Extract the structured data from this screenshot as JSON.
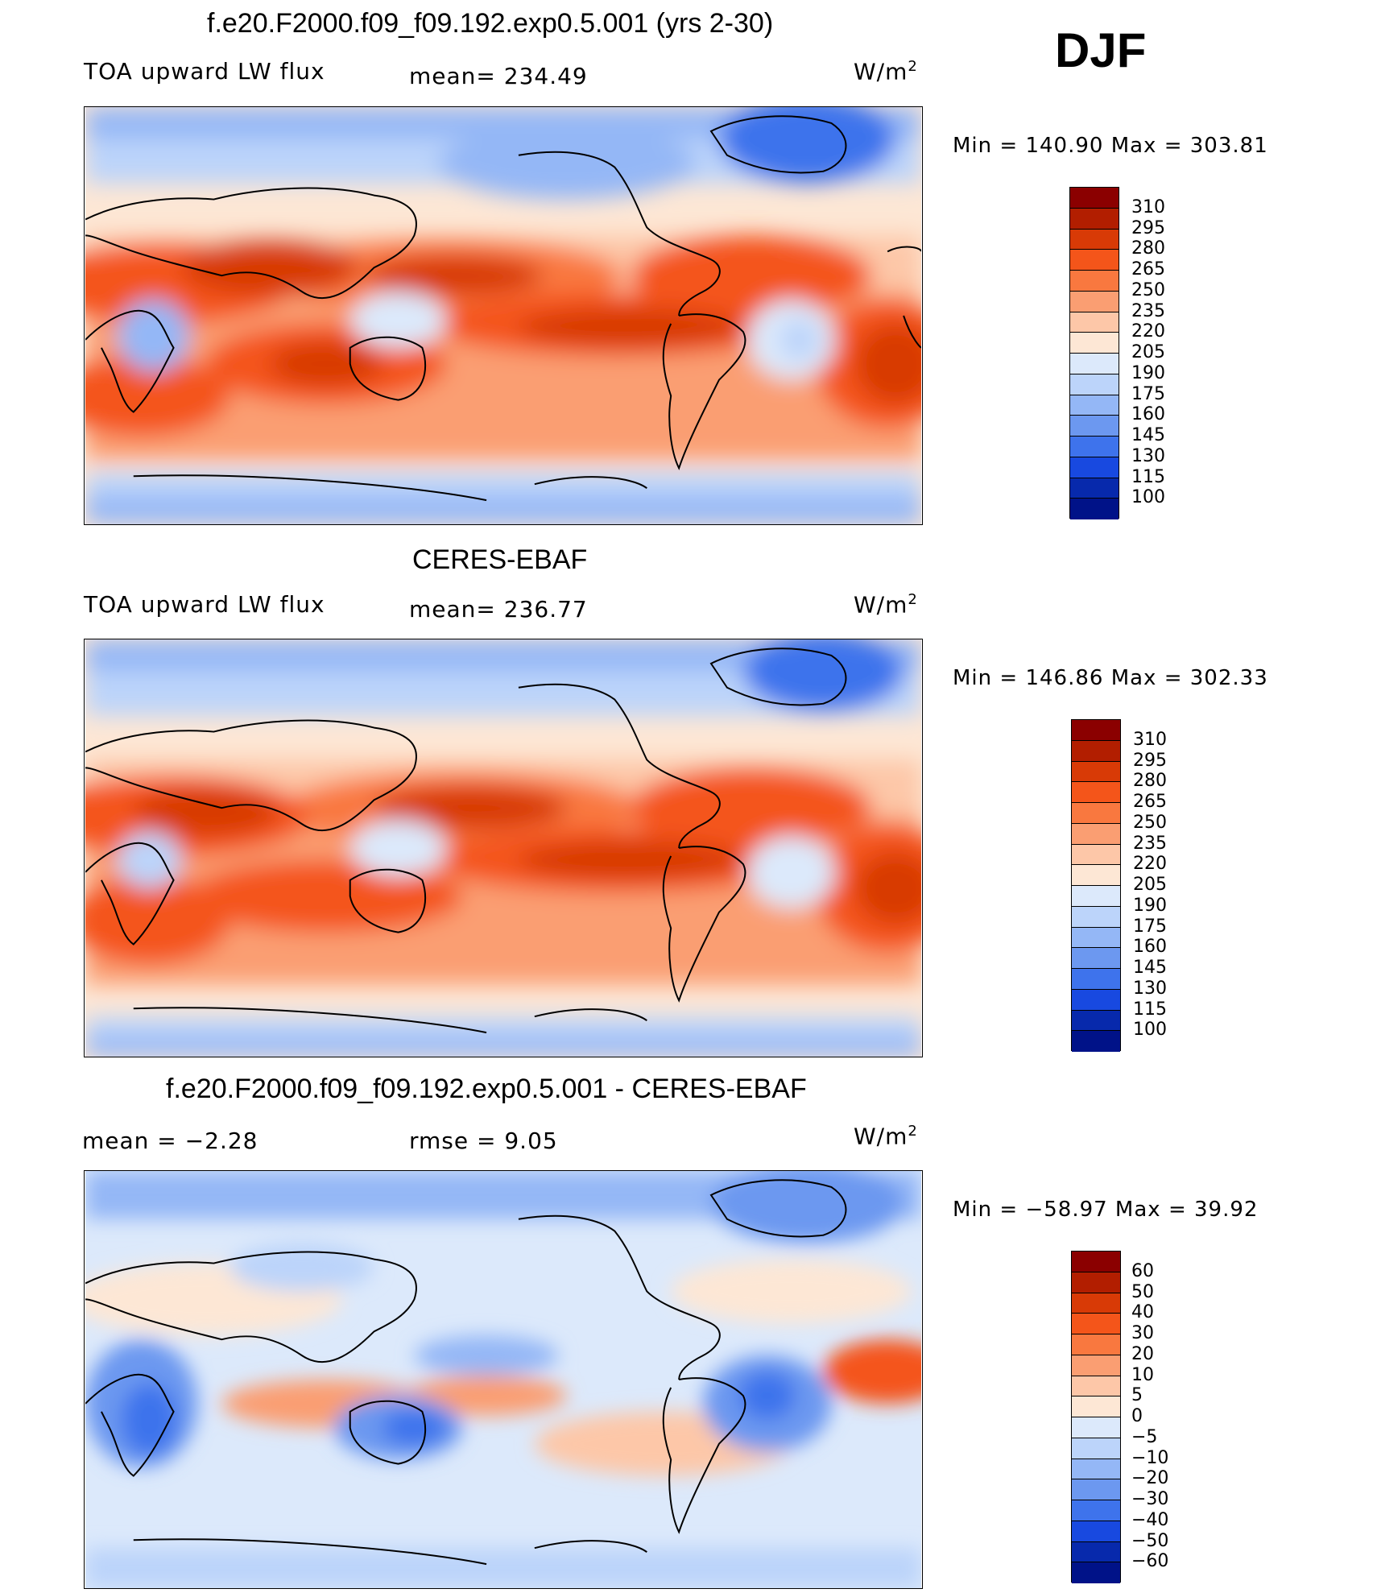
{
  "season": "DJF",
  "panels": [
    {
      "id": "model",
      "title": "f.e20.F2000.f09_f09.192.exp0.5.001 (yrs 2-30)",
      "left_text": "TOA upward LW flux",
      "mid_text": "mean= 234.49",
      "units_base": "W/m",
      "units_exp": "2",
      "minmax": "Min = 140.90 Max = 303.81",
      "levels": [
        "310",
        "295",
        "280",
        "265",
        "250",
        "235",
        "220",
        "205",
        "190",
        "175",
        "160",
        "145",
        "130",
        "115",
        "100"
      ],
      "palette": [
        "#8b0000",
        "#b21e00",
        "#d83a06",
        "#f4551a",
        "#f9783f",
        "#fa9e72",
        "#fdc7a8",
        "#fde7d5",
        "#dce9fb",
        "#bcd4fa",
        "#94b7f6",
        "#6c98f0",
        "#3e73ec",
        "#1849e0",
        "#0729ac",
        "#001288"
      ],
      "map_icon": "world-map-pacific-centered"
    },
    {
      "id": "obs",
      "title": "CERES-EBAF",
      "left_text": "TOA upward LW flux",
      "mid_text": "mean= 236.77",
      "units_base": "W/m",
      "units_exp": "2",
      "minmax": "Min = 146.86 Max = 302.33",
      "levels": [
        "310",
        "295",
        "280",
        "265",
        "250",
        "235",
        "220",
        "205",
        "190",
        "175",
        "160",
        "145",
        "130",
        "115",
        "100"
      ],
      "palette": [
        "#8b0000",
        "#b21e00",
        "#d83a06",
        "#f4551a",
        "#f9783f",
        "#fa9e72",
        "#fdc7a8",
        "#fde7d5",
        "#dce9fb",
        "#bcd4fa",
        "#94b7f6",
        "#6c98f0",
        "#3e73ec",
        "#1849e0",
        "#0729ac",
        "#001288"
      ],
      "map_icon": "world-map-pacific-centered"
    },
    {
      "id": "diff",
      "title": "f.e20.F2000.f09_f09.192.exp0.5.001 - CERES-EBAF",
      "left_text": "mean =    −2.28",
      "mid_text": "rmse =     9.05",
      "units_base": "W/m",
      "units_exp": "2",
      "minmax": "Min = −58.97 Max =   39.92",
      "levels": [
        "60",
        "50",
        "40",
        "30",
        "20",
        "10",
        "5",
        "0",
        "−5",
        "−10",
        "−20",
        "−30",
        "−40",
        "−50",
        "−60"
      ],
      "palette": [
        "#8b0000",
        "#b21e00",
        "#d83a06",
        "#f4551a",
        "#f9783f",
        "#fa9e72",
        "#fdc7a8",
        "#fde7d5",
        "#dce9fb",
        "#bcd4fa",
        "#94b7f6",
        "#6c98f0",
        "#3e73ec",
        "#1849e0",
        "#0729ac",
        "#001288"
      ],
      "map_icon": "world-map-pacific-centered"
    }
  ]
}
